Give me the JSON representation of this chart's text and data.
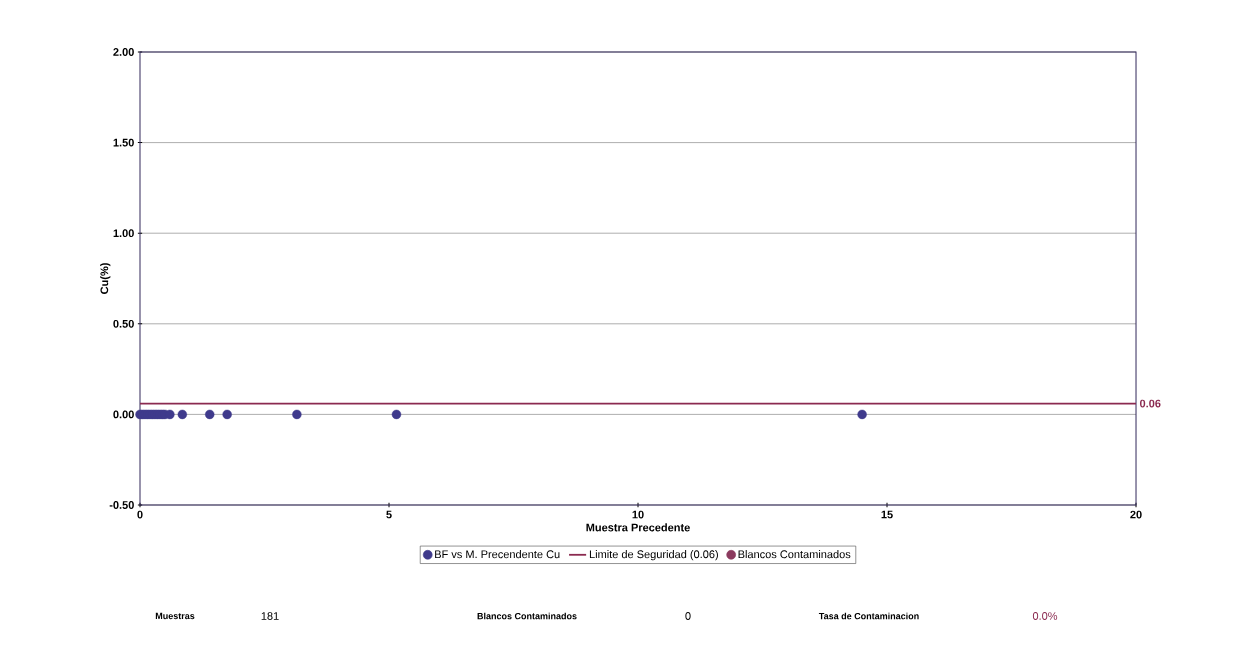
{
  "chart_data": {
    "type": "scatter",
    "xlabel": "Muestra Precedente",
    "ylabel": "Cu(%)",
    "xlim": [
      0,
      20
    ],
    "ylim": [
      -0.5,
      2
    ],
    "xticks": [
      0,
      5,
      10,
      15,
      20
    ],
    "yticks": [
      {
        "value": -0.5,
        "label": "-0.50"
      },
      {
        "value": 0,
        "label": "0.00"
      },
      {
        "value": 0.5,
        "label": "0.50"
      },
      {
        "value": 1,
        "label": "1.00"
      },
      {
        "value": 1.5,
        "label": "1.50"
      },
      {
        "value": 2,
        "label": "2.00"
      }
    ],
    "grid": "y",
    "legend": "bottom",
    "series": [
      {
        "name": "BF vs M. Precendente Cu",
        "marker": "circle",
        "color": "#3f3a8c",
        "x": [
          0,
          0.05,
          0.1,
          0.15,
          0.2,
          0.25,
          0.3,
          0.35,
          0.4,
          0.45,
          0.5,
          0.6,
          0.85,
          1.4,
          1.75,
          3.15,
          5.15,
          14.5
        ],
        "values": [
          0,
          0,
          0,
          0,
          0,
          0,
          0,
          0,
          0,
          0,
          0,
          0,
          0,
          0,
          0,
          0,
          0,
          0
        ]
      },
      {
        "name": "Limite de Seguridad (0.06)",
        "type": "line",
        "marker": "none",
        "color": "#8b2a50",
        "x": [
          0,
          20
        ],
        "values": [
          0.06,
          0.06
        ]
      },
      {
        "name": "Blancos Contaminados",
        "marker": "circle",
        "color": "#8b3a5e"
      }
    ],
    "annotations": [
      {
        "text": "0.06",
        "x": 20,
        "y": 0.06
      },
      "Muestras",
      "181",
      "Blancos Contaminados",
      "0",
      "Tasa de Contaminacion",
      "0.0%"
    ]
  }
}
